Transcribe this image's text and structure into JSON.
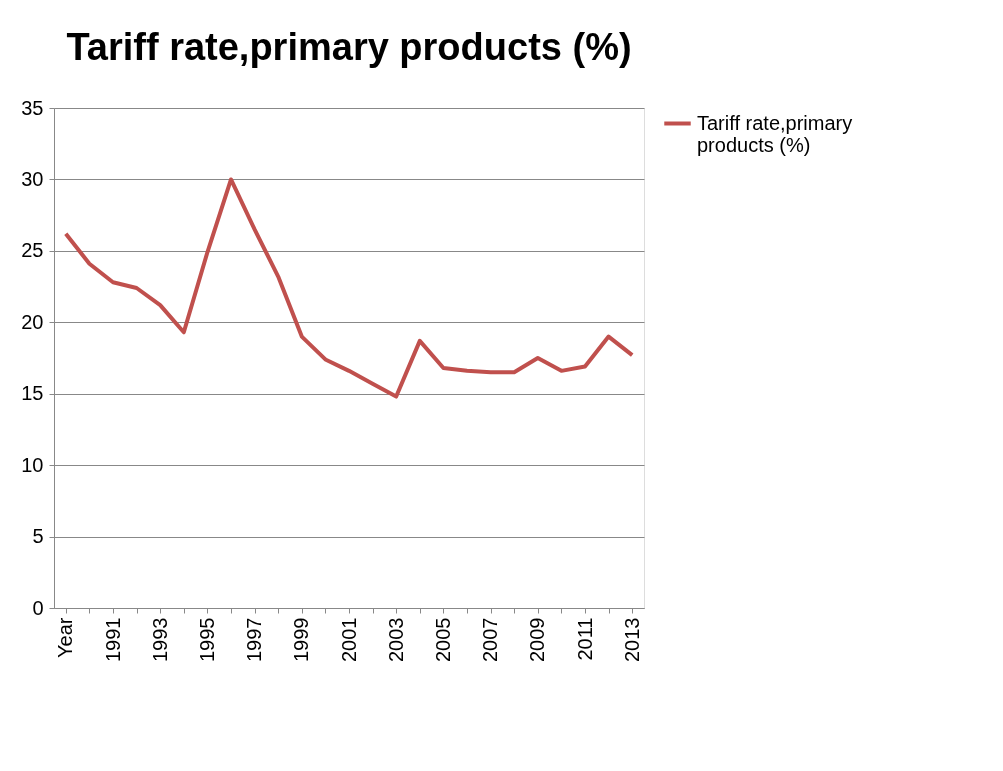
{
  "chart_data": {
    "type": "line",
    "title": "Tariff rate,primary products (%)",
    "categories": [
      "Year",
      null,
      "1991",
      null,
      "1993",
      null,
      "1995",
      null,
      "1997",
      null,
      "1999",
      null,
      "2001",
      null,
      "2003",
      null,
      "2005",
      null,
      "2007",
      null,
      "2009",
      null,
      "2011",
      null,
      "2013"
    ],
    "series": [
      {
        "name": "Tariff rate,primary products (%)",
        "color": "#c0504d",
        "values": [
          26.2,
          24.1,
          22.8,
          22.4,
          21.2,
          19.3,
          24.9,
          30.0,
          26.5,
          23.2,
          19.0,
          17.4,
          16.6,
          15.7,
          14.8,
          18.7,
          16.8,
          16.6,
          16.5,
          16.5,
          17.5,
          16.6,
          16.9,
          19.0,
          17.7
        ]
      }
    ],
    "ylim": [
      0,
      35
    ],
    "yticks": [
      0,
      5,
      10,
      15,
      20,
      25,
      30,
      35
    ],
    "grid": "y",
    "legend": "right",
    "marker": "none",
    "line_style": "solid"
  }
}
